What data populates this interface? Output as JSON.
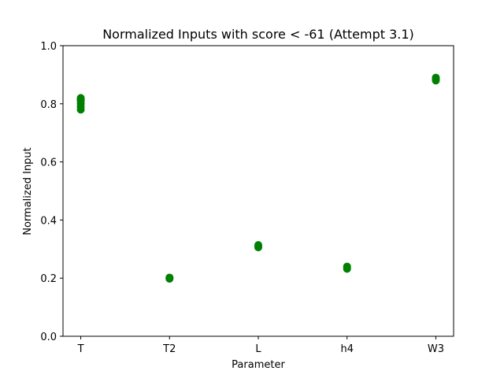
{
  "chart_data": {
    "type": "scatter",
    "title": "Normalized Inputs with score < -61 (Attempt 3.1)",
    "xlabel": "Parameter",
    "ylabel": "Normalized Input",
    "categories": [
      "T",
      "T2",
      "L",
      "h4",
      "W3"
    ],
    "ylim": [
      0.0,
      1.0
    ],
    "yticks": [
      0.0,
      0.2,
      0.4,
      0.6,
      0.8,
      1.0
    ],
    "ytick_labels": [
      "0.0",
      "0.2",
      "0.4",
      "0.6",
      "0.8",
      "1.0"
    ],
    "grid": false,
    "legend": "none",
    "marker_color": "#008000",
    "series": [
      {
        "points": [
          {
            "x": "T",
            "y": 0.78
          },
          {
            "x": "T",
            "y": 0.79
          },
          {
            "x": "T",
            "y": 0.8
          },
          {
            "x": "T",
            "y": 0.81
          },
          {
            "x": "T",
            "y": 0.815
          },
          {
            "x": "T",
            "y": 0.82
          },
          {
            "x": "T2",
            "y": 0.198
          },
          {
            "x": "T2",
            "y": 0.2
          },
          {
            "x": "T2",
            "y": 0.202
          },
          {
            "x": "L",
            "y": 0.306
          },
          {
            "x": "L",
            "y": 0.31
          },
          {
            "x": "L",
            "y": 0.314
          },
          {
            "x": "h4",
            "y": 0.232
          },
          {
            "x": "h4",
            "y": 0.236
          },
          {
            "x": "h4",
            "y": 0.24
          },
          {
            "x": "W3",
            "y": 0.88
          },
          {
            "x": "W3",
            "y": 0.885
          },
          {
            "x": "W3",
            "y": 0.89
          }
        ]
      }
    ]
  }
}
